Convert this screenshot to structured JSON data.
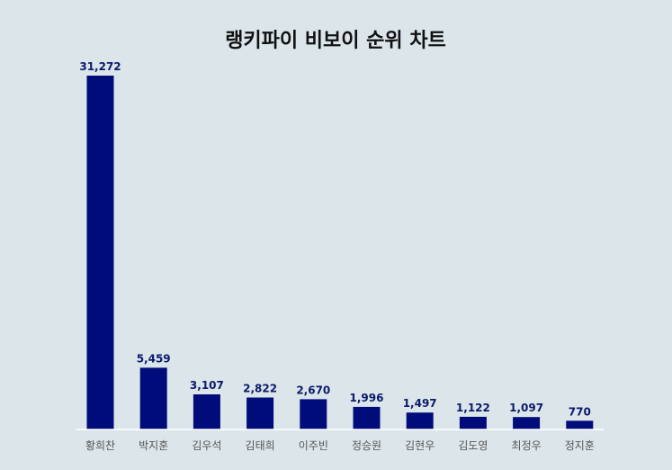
{
  "chart_data": {
    "type": "bar",
    "title": "랭키파이 비보이 순위 차트",
    "xlabel": "",
    "ylabel": "",
    "categories": [
      "황희찬",
      "박지훈",
      "김우석",
      "김태희",
      "이주빈",
      "정승원",
      "김현우",
      "김도영",
      "최정우",
      "정지훈"
    ],
    "values": [
      31272,
      5459,
      3107,
      2822,
      2670,
      1996,
      1497,
      1122,
      1097,
      770
    ],
    "value_labels": [
      "31,272",
      "5,459",
      "3,107",
      "2,822",
      "2,670",
      "1,996",
      "1,497",
      "1,122",
      "1,097",
      "770"
    ],
    "ylim": [
      0,
      31272
    ],
    "grid": false,
    "legend": "none",
    "colors": {
      "background": "#dce6ea",
      "bar": "#000c7a",
      "bar_label": "#0b1a6b",
      "tick_label": "#555555",
      "title": "#111111",
      "baseline": "#ffffff"
    }
  }
}
